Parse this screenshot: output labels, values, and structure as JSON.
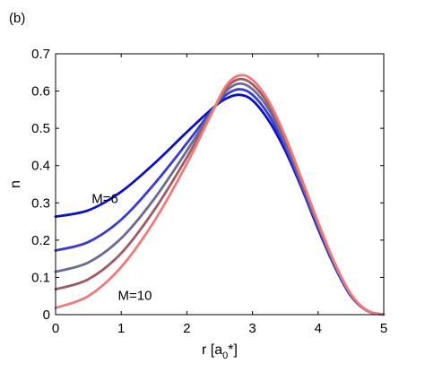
{
  "panel_label": "(b)",
  "chart_data": {
    "type": "line",
    "xlabel": "r [a",
    "xlabel_sub": "0",
    "xlabel_tail": "*]",
    "ylabel": "n",
    "xlim": [
      0,
      5
    ],
    "ylim": [
      0,
      0.7
    ],
    "xticks": [
      0,
      1,
      2,
      3,
      4,
      5
    ],
    "yticks": [
      0,
      0.1,
      0.2,
      0.3,
      0.4,
      0.5,
      0.6,
      0.7
    ],
    "grid": false,
    "annotations": [
      {
        "text": "M=6",
        "x": 0.55,
        "y": 0.3
      },
      {
        "text": "M=10",
        "x": 0.95,
        "y": 0.04
      }
    ],
    "series": [
      {
        "color": "#0a10c8",
        "points": [
          [
            0,
            0.263
          ],
          [
            0.5,
            0.28
          ],
          [
            1,
            0.33
          ],
          [
            1.5,
            0.405
          ],
          [
            2,
            0.49
          ],
          [
            2.4,
            0.555
          ],
          [
            2.6,
            0.58
          ],
          [
            2.8,
            0.59
          ],
          [
            3,
            0.575
          ],
          [
            3.25,
            0.52
          ],
          [
            3.5,
            0.44
          ],
          [
            3.75,
            0.34
          ],
          [
            4,
            0.23
          ],
          [
            4.25,
            0.13
          ],
          [
            4.5,
            0.05
          ],
          [
            4.75,
            0.01
          ],
          [
            5,
            0
          ]
        ]
      },
      {
        "color": "#3b3ad4",
        "points": [
          [
            0,
            0.172
          ],
          [
            0.5,
            0.195
          ],
          [
            1,
            0.255
          ],
          [
            1.5,
            0.35
          ],
          [
            2,
            0.46
          ],
          [
            2.4,
            0.553
          ],
          [
            2.6,
            0.59
          ],
          [
            2.8,
            0.605
          ],
          [
            3,
            0.59
          ],
          [
            3.25,
            0.535
          ],
          [
            3.5,
            0.45
          ],
          [
            3.75,
            0.345
          ],
          [
            4,
            0.235
          ],
          [
            4.25,
            0.133
          ],
          [
            4.5,
            0.052
          ],
          [
            4.75,
            0.01
          ],
          [
            5,
            0
          ]
        ]
      },
      {
        "color": "#6a6a98",
        "points": [
          [
            0,
            0.115
          ],
          [
            0.5,
            0.14
          ],
          [
            1,
            0.205
          ],
          [
            1.5,
            0.31
          ],
          [
            2,
            0.44
          ],
          [
            2.4,
            0.551
          ],
          [
            2.6,
            0.6
          ],
          [
            2.8,
            0.62
          ],
          [
            3,
            0.605
          ],
          [
            3.25,
            0.55
          ],
          [
            3.5,
            0.46
          ],
          [
            3.75,
            0.352
          ],
          [
            4,
            0.24
          ],
          [
            4.25,
            0.136
          ],
          [
            4.5,
            0.053
          ],
          [
            4.75,
            0.01
          ],
          [
            5,
            0
          ]
        ]
      },
      {
        "color": "#a05a62",
        "points": [
          [
            0,
            0.068
          ],
          [
            0.5,
            0.095
          ],
          [
            1,
            0.165
          ],
          [
            1.5,
            0.28
          ],
          [
            2,
            0.422
          ],
          [
            2.4,
            0.55
          ],
          [
            2.6,
            0.608
          ],
          [
            2.8,
            0.632
          ],
          [
            3,
            0.618
          ],
          [
            3.25,
            0.562
          ],
          [
            3.5,
            0.47
          ],
          [
            3.75,
            0.358
          ],
          [
            4,
            0.244
          ],
          [
            4.25,
            0.138
          ],
          [
            4.5,
            0.054
          ],
          [
            4.75,
            0.011
          ],
          [
            5,
            0
          ]
        ]
      },
      {
        "color": "#f07a7a",
        "points": [
          [
            0,
            0.018
          ],
          [
            0.5,
            0.05
          ],
          [
            1,
            0.128
          ],
          [
            1.5,
            0.25
          ],
          [
            2,
            0.405
          ],
          [
            2.4,
            0.548
          ],
          [
            2.6,
            0.615
          ],
          [
            2.8,
            0.642
          ],
          [
            3,
            0.63
          ],
          [
            3.25,
            0.572
          ],
          [
            3.5,
            0.478
          ],
          [
            3.75,
            0.364
          ],
          [
            4,
            0.248
          ],
          [
            4.25,
            0.14
          ],
          [
            4.5,
            0.055
          ],
          [
            4.75,
            0.011
          ],
          [
            5,
            0
          ]
        ]
      }
    ]
  }
}
